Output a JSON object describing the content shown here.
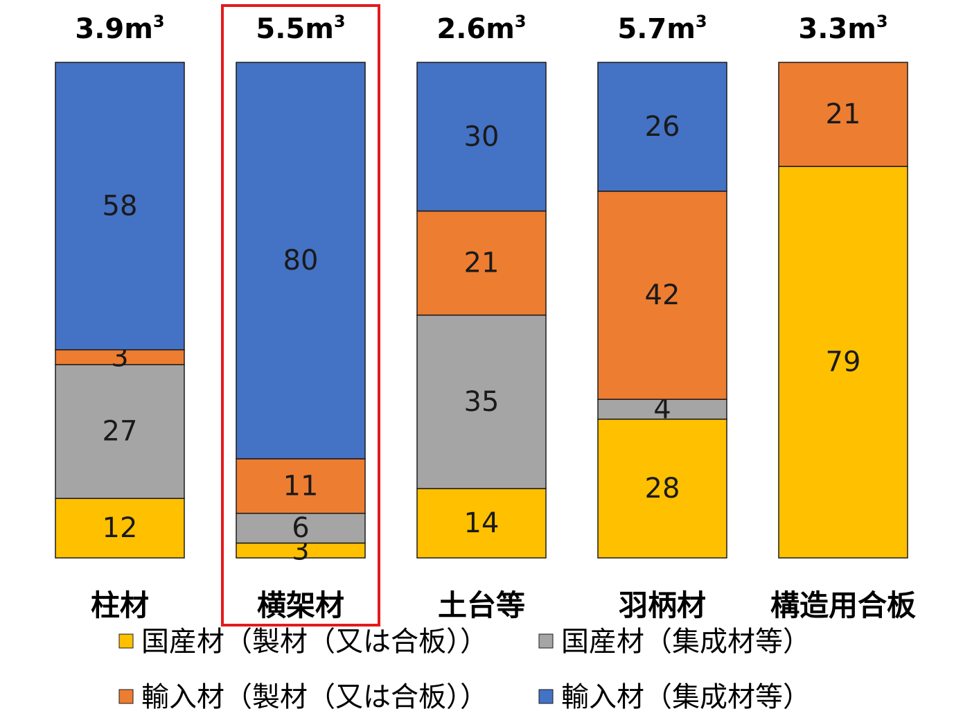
{
  "chart_data": {
    "type": "bar",
    "stacked": true,
    "normalized_percent": true,
    "categories": [
      "柱材",
      "横架材",
      "土台等",
      "羽柄材",
      "構造用合板"
    ],
    "totals": [
      "3.9m",
      "5.5m",
      "2.6m",
      "5.7m",
      "3.3m"
    ],
    "total_unit_superscript": "3",
    "highlighted_category": "横架材",
    "highlight_color": "#e31a1c",
    "series": [
      {
        "name": "国産材（製材（又は合板））",
        "color": "#ffc000",
        "values": [
          12,
          3,
          14,
          28,
          79
        ],
        "labels": [
          "12",
          "3",
          "14",
          "28",
          "79"
        ]
      },
      {
        "name": "国産材（集成材等）",
        "color": "#a5a5a5",
        "values": [
          27,
          6,
          35,
          4,
          0
        ],
        "labels": [
          "27",
          "6",
          "35",
          "4",
          ""
        ]
      },
      {
        "name": "輸入材（製材（又は合板））",
        "color": "#ed7d31",
        "values": [
          3,
          11,
          21,
          42,
          21
        ],
        "labels": [
          "3",
          "11",
          "21",
          "42",
          "21"
        ]
      },
      {
        "name": "輸入材（集成材等）",
        "color": "#4472c4",
        "values": [
          58,
          80,
          30,
          26,
          0
        ],
        "labels": [
          "58",
          "80",
          "30",
          "26",
          ""
        ]
      }
    ],
    "legend_order": [
      0,
      1,
      2,
      3
    ],
    "legend_position": "bottom",
    "ylim": [
      0,
      100
    ]
  }
}
